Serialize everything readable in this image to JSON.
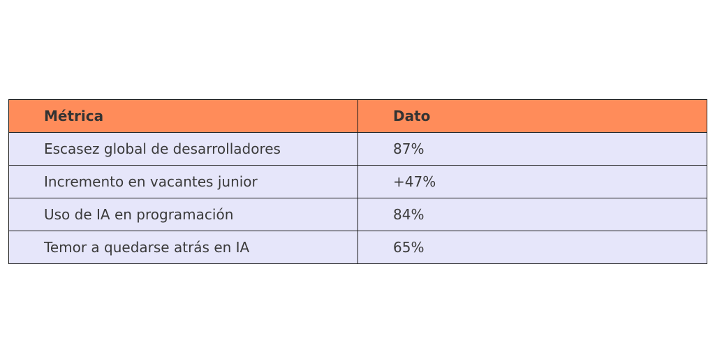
{
  "colors": {
    "header_bg": "#FF8C5A",
    "row_bg": "#E6E6FA",
    "border": "#1a1a1a"
  },
  "chart_data": {
    "type": "table",
    "columns": [
      "Métrica",
      "Dato"
    ],
    "rows": [
      [
        "Escasez global de desarrolladores",
        "87%"
      ],
      [
        "Incremento en vacantes junior",
        "+47%"
      ],
      [
        "Uso de IA en programación",
        "84%"
      ],
      [
        "Temor a quedarse atrás en IA",
        "65%"
      ]
    ]
  }
}
